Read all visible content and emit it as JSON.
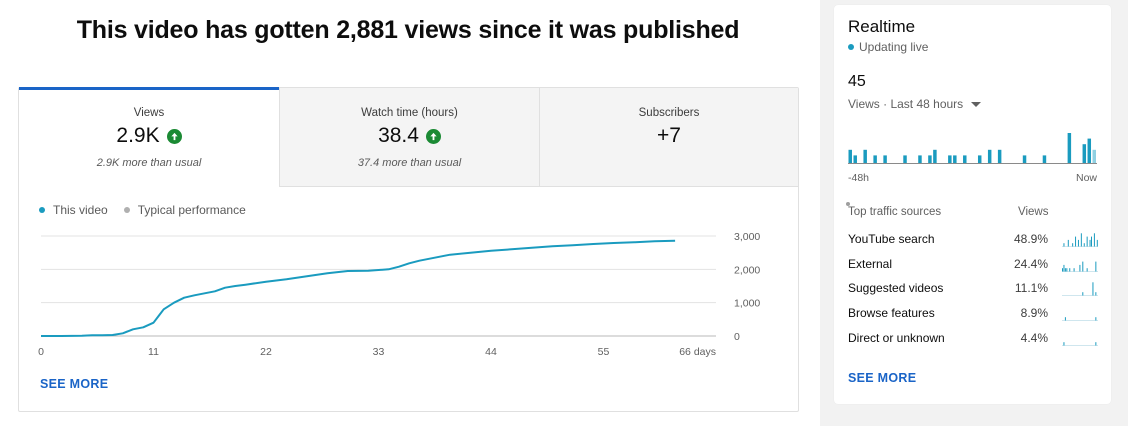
{
  "headline": "This video has gotten 2,881 views since it was published",
  "colors": {
    "accent": "#1a64c7",
    "series": "#1a9bbf",
    "typical": "#b0b0b0",
    "up": "#1b8a34"
  },
  "tabs": [
    {
      "label": "Views",
      "value": "2.9K",
      "trend": "up",
      "sub": "2.9K more than usual"
    },
    {
      "label": "Watch time (hours)",
      "value": "38.4",
      "trend": "up",
      "sub": "37.4 more than usual"
    },
    {
      "label": "Subscribers",
      "value": "+7",
      "trend": "",
      "sub": ""
    }
  ],
  "legend": {
    "this_video": "This video",
    "typical": "Typical performance"
  },
  "chart_data": {
    "type": "line",
    "series": [
      {
        "name": "This video",
        "x": [
          0,
          2,
          4,
          5,
          6,
          7,
          8,
          9,
          10,
          11,
          11.5,
          12,
          13,
          14,
          15,
          16,
          17,
          18,
          19,
          20,
          22,
          24,
          26,
          28,
          30,
          32,
          34,
          35,
          36,
          37,
          38,
          40,
          42,
          44,
          46,
          48,
          50,
          52,
          54,
          56,
          58,
          60,
          62
        ],
        "y": [
          0,
          0,
          10,
          20,
          25,
          30,
          80,
          200,
          260,
          400,
          600,
          800,
          1000,
          1150,
          1220,
          1280,
          1340,
          1450,
          1500,
          1540,
          1630,
          1700,
          1790,
          1880,
          1950,
          1960,
          2000,
          2080,
          2180,
          2260,
          2320,
          2440,
          2500,
          2560,
          2600,
          2650,
          2690,
          2720,
          2760,
          2790,
          2810,
          2840,
          2860
        ]
      }
    ],
    "x_ticks": [
      "0",
      "11",
      "22",
      "33",
      "44",
      "55",
      "66 days"
    ],
    "x_tick_values": [
      0,
      11,
      22,
      33,
      44,
      55,
      66
    ],
    "y_ticks": [
      "0",
      "1,000",
      "2,000",
      "3,000"
    ],
    "y_tick_values": [
      0,
      1000,
      2000,
      3000
    ],
    "xlim": [
      0,
      66
    ],
    "ylim": [
      0,
      3000
    ],
    "grid": true
  },
  "see_more_label": "SEE MORE",
  "realtime": {
    "title": "Realtime",
    "status": "Updating live",
    "count": "45",
    "range": "Views · Last 48 hours",
    "axis_start": "-48h",
    "axis_end": "Now",
    "bars": [
      2,
      1,
      0,
      2,
      0,
      1,
      0,
      1,
      0,
      0,
      0,
      1,
      0,
      0,
      1,
      0,
      1,
      2,
      0,
      0,
      1,
      1,
      0,
      1,
      0,
      0,
      1,
      0,
      2,
      0,
      2,
      0,
      0,
      0,
      0,
      1,
      0,
      0,
      0,
      1,
      0,
      0,
      0,
      0,
      5,
      0,
      0,
      3,
      4,
      2
    ],
    "bars_max": 5,
    "traffic_header": "Top traffic sources",
    "views_header": "Views",
    "sources": [
      {
        "name": "YouTube search",
        "pct": "48.9%",
        "spark": [
          0,
          1,
          0,
          0,
          2,
          0,
          0,
          1,
          0,
          3,
          0,
          2,
          0,
          4,
          0,
          1,
          0,
          3,
          0,
          2,
          3,
          0,
          4,
          0,
          2
        ]
      },
      {
        "name": "External",
        "pct": "24.4%",
        "spark": [
          1,
          2,
          1,
          1,
          0,
          1,
          0,
          0,
          1,
          0,
          0,
          0,
          2,
          0,
          3,
          0,
          0,
          1,
          0,
          0,
          0,
          0,
          0,
          3,
          0
        ]
      },
      {
        "name": "Suggested videos",
        "pct": "11.1%",
        "spark": [
          0,
          0,
          0,
          0,
          0,
          0,
          0,
          0,
          0,
          0,
          0,
          0,
          0,
          0,
          1,
          0,
          0,
          0,
          0,
          0,
          0,
          4,
          0,
          1,
          0
        ]
      },
      {
        "name": "Browse features",
        "pct": "8.9%",
        "spark": [
          0,
          0,
          1,
          0,
          0,
          0,
          0,
          0,
          0,
          0,
          0,
          0,
          0,
          0,
          0,
          0,
          0,
          0,
          0,
          0,
          0,
          0,
          0,
          1,
          0
        ]
      },
      {
        "name": "Direct or unknown",
        "pct": "4.4%",
        "spark": [
          0,
          1,
          0,
          0,
          0,
          0,
          0,
          0,
          0,
          0,
          0,
          0,
          0,
          0,
          0,
          0,
          0,
          0,
          0,
          0,
          0,
          0,
          0,
          1,
          0
        ]
      }
    ]
  }
}
